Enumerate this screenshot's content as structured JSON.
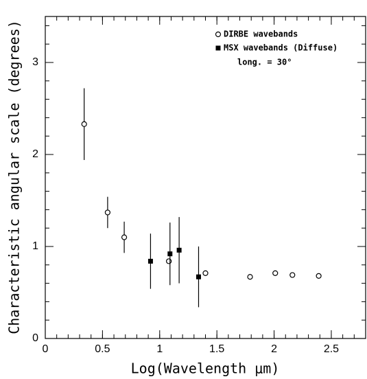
{
  "chart_data": {
    "type": "scatter",
    "xlabel": "Log(Wavelength μm)",
    "ylabel": "Characteristic angular scale (degrees)",
    "annotation": "long. = 30°",
    "xlim": [
      0,
      2.8
    ],
    "ylim": [
      0,
      3.5
    ],
    "xticks": [
      0,
      0.5,
      1,
      1.5,
      2,
      2.5
    ],
    "yticks": [
      0,
      1,
      2,
      3
    ],
    "legend": "top-right",
    "series": [
      {
        "name": "DIRBE wavebands",
        "marker": "open-circle",
        "color": "#000000",
        "x": [
          0.34,
          0.545,
          0.69,
          1.08,
          1.4,
          1.79,
          2.01,
          2.16,
          2.39
        ],
        "values": [
          2.33,
          1.37,
          1.1,
          0.84,
          0.71,
          0.67,
          0.71,
          0.69,
          0.68
        ],
        "errors": [
          0.39,
          0.17,
          0.17,
          null,
          null,
          null,
          null,
          null,
          null
        ]
      },
      {
        "name": "MSX wavebands (Diffuse)",
        "marker": "filled-square",
        "color": "#000000",
        "x": [
          0.92,
          1.09,
          1.17,
          1.34
        ],
        "values": [
          0.84,
          0.92,
          0.96,
          0.67
        ],
        "errors": [
          0.3,
          0.34,
          0.36,
          0.33
        ]
      }
    ]
  }
}
